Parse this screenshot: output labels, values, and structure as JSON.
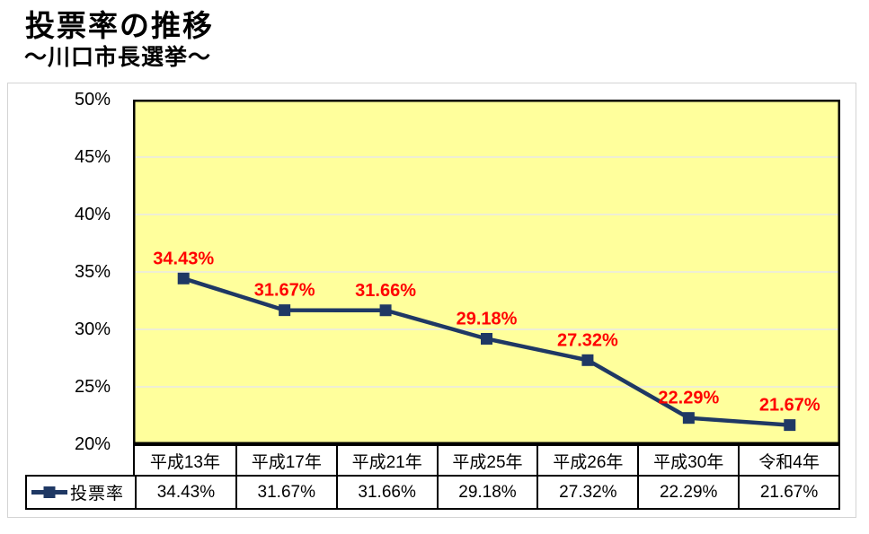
{
  "page": {
    "title": "投票率の推移",
    "subtitle": "～川口市長選挙～"
  },
  "legend": {
    "label": "投票率"
  },
  "y_axis": {
    "tick_labels": [
      "50%",
      "45%",
      "40%",
      "35%",
      "30%",
      "25%",
      "20%"
    ]
  },
  "chart_data": {
    "type": "line",
    "title": "投票率の推移 ～川口市長選挙～",
    "categories": [
      "平成13年",
      "平成17年",
      "平成21年",
      "平成25年",
      "平成26年",
      "平成30年",
      "令和4年"
    ],
    "series": [
      {
        "name": "投票率",
        "values": [
          34.43,
          31.67,
          31.66,
          29.18,
          27.32,
          22.29,
          21.67
        ]
      }
    ],
    "data_labels": [
      "34.43%",
      "31.67%",
      "31.66%",
      "29.18%",
      "27.32%",
      "22.29%",
      "21.67%"
    ],
    "xlabel": "",
    "ylabel": "",
    "ylim": [
      20,
      50
    ],
    "y_tick_step": 5,
    "grid": true,
    "marker": "square",
    "legend_position": "bottom-left"
  },
  "colors": {
    "line": "#1F3864",
    "plot_background": "#FFFF9C",
    "data_label": "#FF0000",
    "gridline": "#E8E8E8",
    "text": "#000000",
    "table_border": "#000000",
    "frame_border": "#D4D4D4"
  }
}
